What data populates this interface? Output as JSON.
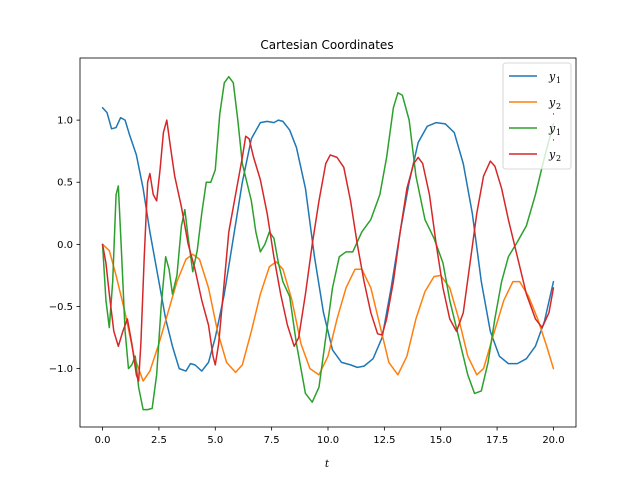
{
  "chart_data": {
    "type": "line",
    "title": "Cartesian Coordinates",
    "xlabel": "t",
    "ylabel": "",
    "xlim": [
      -1.0,
      21.0
    ],
    "ylim": [
      -1.47,
      1.5
    ],
    "xticks": [
      0.0,
      2.5,
      5.0,
      7.5,
      10.0,
      12.5,
      15.0,
      17.5,
      20.0
    ],
    "xtick_labels": [
      "0.0",
      "2.5",
      "5.0",
      "7.5",
      "10.0",
      "12.5",
      "15.0",
      "17.5",
      "20.0"
    ],
    "yticks": [
      1.0,
      0.5,
      0.0,
      -0.5,
      -1.0
    ],
    "ytick_labels": [
      "1.0",
      "0.5",
      "0.0",
      "−0.5",
      "−1.0"
    ],
    "grid": false,
    "legend_position": "top-right",
    "series": [
      {
        "name": "y1",
        "label_main": "y",
        "label_sub": "1",
        "label_dot": false,
        "color": "#1f77b4",
        "points": [
          [
            0.0,
            1.1
          ],
          [
            0.2,
            1.06
          ],
          [
            0.4,
            0.93
          ],
          [
            0.6,
            0.94
          ],
          [
            0.8,
            1.02
          ],
          [
            1.0,
            1.0
          ],
          [
            1.2,
            0.88
          ],
          [
            1.5,
            0.72
          ],
          [
            1.8,
            0.45
          ],
          [
            2.1,
            0.1
          ],
          [
            2.5,
            -0.3
          ],
          [
            2.8,
            -0.6
          ],
          [
            3.1,
            -0.82
          ],
          [
            3.4,
            -1.0
          ],
          [
            3.7,
            -1.02
          ],
          [
            3.9,
            -0.96
          ],
          [
            4.1,
            -0.97
          ],
          [
            4.4,
            -1.02
          ],
          [
            4.7,
            -0.95
          ],
          [
            5.0,
            -0.75
          ],
          [
            5.4,
            -0.4
          ],
          [
            5.8,
            0.05
          ],
          [
            6.2,
            0.5
          ],
          [
            6.6,
            0.85
          ],
          [
            7.0,
            0.98
          ],
          [
            7.3,
            0.99
          ],
          [
            7.6,
            0.98
          ],
          [
            7.8,
            1.0
          ],
          [
            8.0,
            0.99
          ],
          [
            8.3,
            0.92
          ],
          [
            8.6,
            0.78
          ],
          [
            9.0,
            0.45
          ],
          [
            9.4,
            -0.1
          ],
          [
            9.8,
            -0.55
          ],
          [
            10.2,
            -0.85
          ],
          [
            10.6,
            -0.95
          ],
          [
            11.0,
            -0.97
          ],
          [
            11.3,
            -0.99
          ],
          [
            11.6,
            -0.98
          ],
          [
            12.0,
            -0.92
          ],
          [
            12.4,
            -0.75
          ],
          [
            12.8,
            -0.35
          ],
          [
            13.2,
            0.1
          ],
          [
            13.6,
            0.5
          ],
          [
            14.0,
            0.82
          ],
          [
            14.4,
            0.95
          ],
          [
            14.8,
            0.98
          ],
          [
            15.2,
            0.97
          ],
          [
            15.6,
            0.9
          ],
          [
            16.0,
            0.65
          ],
          [
            16.4,
            0.25
          ],
          [
            16.8,
            -0.3
          ],
          [
            17.2,
            -0.7
          ],
          [
            17.6,
            -0.9
          ],
          [
            18.0,
            -0.96
          ],
          [
            18.4,
            -0.96
          ],
          [
            18.8,
            -0.92
          ],
          [
            19.2,
            -0.82
          ],
          [
            19.6,
            -0.62
          ],
          [
            20.0,
            -0.3
          ]
        ]
      },
      {
        "name": "y2",
        "label_main": "y",
        "label_sub": "2",
        "label_dot": false,
        "color": "#ff7f0e",
        "points": [
          [
            0.0,
            0.0
          ],
          [
            0.3,
            -0.05
          ],
          [
            0.6,
            -0.25
          ],
          [
            1.0,
            -0.55
          ],
          [
            1.4,
            -0.9
          ],
          [
            1.8,
            -1.1
          ],
          [
            2.1,
            -1.02
          ],
          [
            2.5,
            -0.8
          ],
          [
            2.9,
            -0.55
          ],
          [
            3.3,
            -0.3
          ],
          [
            3.7,
            -0.12
          ],
          [
            4.0,
            -0.08
          ],
          [
            4.3,
            -0.12
          ],
          [
            4.7,
            -0.35
          ],
          [
            5.1,
            -0.7
          ],
          [
            5.5,
            -0.95
          ],
          [
            5.9,
            -1.03
          ],
          [
            6.2,
            -0.97
          ],
          [
            6.6,
            -0.7
          ],
          [
            7.0,
            -0.4
          ],
          [
            7.4,
            -0.18
          ],
          [
            7.7,
            -0.14
          ],
          [
            8.0,
            -0.2
          ],
          [
            8.4,
            -0.45
          ],
          [
            8.8,
            -0.8
          ],
          [
            9.2,
            -1.0
          ],
          [
            9.6,
            -1.05
          ],
          [
            10.0,
            -0.9
          ],
          [
            10.4,
            -0.6
          ],
          [
            10.8,
            -0.35
          ],
          [
            11.2,
            -0.2
          ],
          [
            11.5,
            -0.2
          ],
          [
            11.9,
            -0.35
          ],
          [
            12.3,
            -0.65
          ],
          [
            12.7,
            -0.95
          ],
          [
            13.1,
            -1.05
          ],
          [
            13.5,
            -0.9
          ],
          [
            13.9,
            -0.6
          ],
          [
            14.3,
            -0.38
          ],
          [
            14.7,
            -0.26
          ],
          [
            15.0,
            -0.25
          ],
          [
            15.4,
            -0.35
          ],
          [
            15.8,
            -0.6
          ],
          [
            16.2,
            -0.9
          ],
          [
            16.6,
            -1.05
          ],
          [
            16.9,
            -1.0
          ],
          [
            17.3,
            -0.75
          ],
          [
            17.8,
            -0.45
          ],
          [
            18.2,
            -0.3
          ],
          [
            18.5,
            -0.3
          ],
          [
            18.9,
            -0.42
          ],
          [
            19.3,
            -0.6
          ],
          [
            19.7,
            -0.82
          ],
          [
            20.0,
            -1.0
          ]
        ]
      },
      {
        "name": "y1 dot",
        "label_main": "y",
        "label_sub": "1",
        "label_dot": true,
        "color": "#2ca02c",
        "points": [
          [
            0.0,
            0.0
          ],
          [
            0.15,
            -0.45
          ],
          [
            0.3,
            -0.67
          ],
          [
            0.45,
            -0.3
          ],
          [
            0.6,
            0.4
          ],
          [
            0.7,
            0.47
          ],
          [
            0.85,
            -0.1
          ],
          [
            1.0,
            -0.7
          ],
          [
            1.15,
            -1.0
          ],
          [
            1.3,
            -0.97
          ],
          [
            1.45,
            -0.9
          ],
          [
            1.6,
            -1.15
          ],
          [
            1.8,
            -1.33
          ],
          [
            2.0,
            -1.33
          ],
          [
            2.2,
            -1.32
          ],
          [
            2.4,
            -1.05
          ],
          [
            2.6,
            -0.5
          ],
          [
            2.8,
            -0.1
          ],
          [
            2.95,
            -0.2
          ],
          [
            3.1,
            -0.4
          ],
          [
            3.3,
            -0.25
          ],
          [
            3.5,
            0.15
          ],
          [
            3.65,
            0.28
          ],
          [
            3.8,
            0.05
          ],
          [
            4.0,
            -0.22
          ],
          [
            4.2,
            -0.05
          ],
          [
            4.4,
            0.25
          ],
          [
            4.6,
            0.5
          ],
          [
            4.8,
            0.5
          ],
          [
            5.0,
            0.6
          ],
          [
            5.2,
            1.05
          ],
          [
            5.4,
            1.3
          ],
          [
            5.6,
            1.35
          ],
          [
            5.8,
            1.3
          ],
          [
            6.0,
            1.0
          ],
          [
            6.2,
            0.65
          ],
          [
            6.4,
            0.5
          ],
          [
            6.6,
            0.35
          ],
          [
            6.8,
            0.1
          ],
          [
            7.0,
            -0.06
          ],
          [
            7.2,
            0.0
          ],
          [
            7.4,
            0.1
          ],
          [
            7.6,
            0.05
          ],
          [
            7.8,
            -0.15
          ],
          [
            8.0,
            -0.3
          ],
          [
            8.3,
            -0.42
          ],
          [
            8.6,
            -0.8
          ],
          [
            9.0,
            -1.2
          ],
          [
            9.3,
            -1.27
          ],
          [
            9.6,
            -1.15
          ],
          [
            9.9,
            -0.75
          ],
          [
            10.2,
            -0.35
          ],
          [
            10.5,
            -0.1
          ],
          [
            10.8,
            -0.06
          ],
          [
            11.1,
            -0.06
          ],
          [
            11.5,
            0.1
          ],
          [
            11.9,
            0.2
          ],
          [
            12.3,
            0.4
          ],
          [
            12.6,
            0.7
          ],
          [
            12.9,
            1.1
          ],
          [
            13.1,
            1.22
          ],
          [
            13.3,
            1.2
          ],
          [
            13.6,
            1.0
          ],
          [
            13.9,
            0.55
          ],
          [
            14.3,
            0.2
          ],
          [
            14.7,
            0.05
          ],
          [
            15.1,
            -0.15
          ],
          [
            15.4,
            -0.45
          ],
          [
            15.8,
            -0.75
          ],
          [
            16.2,
            -1.05
          ],
          [
            16.5,
            -1.2
          ],
          [
            16.8,
            -1.18
          ],
          [
            17.1,
            -0.95
          ],
          [
            17.4,
            -0.6
          ],
          [
            17.7,
            -0.3
          ],
          [
            18.0,
            -0.1
          ],
          [
            18.4,
            0.02
          ],
          [
            18.8,
            0.15
          ],
          [
            19.2,
            0.4
          ],
          [
            19.6,
            0.7
          ],
          [
            20.0,
            0.97
          ]
        ]
      },
      {
        "name": "y2 dot",
        "label_main": "y",
        "label_sub": "2",
        "label_dot": true,
        "color": "#d62728",
        "points": [
          [
            0.0,
            0.0
          ],
          [
            0.15,
            -0.15
          ],
          [
            0.3,
            -0.4
          ],
          [
            0.5,
            -0.7
          ],
          [
            0.7,
            -0.82
          ],
          [
            0.9,
            -0.7
          ],
          [
            1.1,
            -0.6
          ],
          [
            1.3,
            -0.8
          ],
          [
            1.5,
            -1.05
          ],
          [
            1.6,
            -1.1
          ],
          [
            1.7,
            -0.8
          ],
          [
            1.85,
            -0.1
          ],
          [
            2.0,
            0.5
          ],
          [
            2.1,
            0.57
          ],
          [
            2.25,
            0.4
          ],
          [
            2.4,
            0.35
          ],
          [
            2.55,
            0.6
          ],
          [
            2.7,
            0.9
          ],
          [
            2.85,
            1.0
          ],
          [
            3.0,
            0.8
          ],
          [
            3.2,
            0.55
          ],
          [
            3.5,
            0.3
          ],
          [
            3.8,
            0.0
          ],
          [
            4.1,
            -0.2
          ],
          [
            4.4,
            -0.45
          ],
          [
            4.7,
            -0.65
          ],
          [
            4.9,
            -0.9
          ],
          [
            5.0,
            -0.97
          ],
          [
            5.15,
            -0.8
          ],
          [
            5.35,
            -0.4
          ],
          [
            5.6,
            0.1
          ],
          [
            5.9,
            0.4
          ],
          [
            6.2,
            0.7
          ],
          [
            6.35,
            0.87
          ],
          [
            6.5,
            0.85
          ],
          [
            6.7,
            0.7
          ],
          [
            7.0,
            0.52
          ],
          [
            7.3,
            0.25
          ],
          [
            7.6,
            -0.1
          ],
          [
            7.9,
            -0.4
          ],
          [
            8.2,
            -0.65
          ],
          [
            8.5,
            -0.82
          ],
          [
            8.7,
            -0.75
          ],
          [
            9.0,
            -0.4
          ],
          [
            9.3,
            0.0
          ],
          [
            9.6,
            0.35
          ],
          [
            9.9,
            0.65
          ],
          [
            10.1,
            0.72
          ],
          [
            10.4,
            0.7
          ],
          [
            10.7,
            0.62
          ],
          [
            11.0,
            0.35
          ],
          [
            11.3,
            0.0
          ],
          [
            11.6,
            -0.3
          ],
          [
            11.9,
            -0.55
          ],
          [
            12.2,
            -0.72
          ],
          [
            12.4,
            -0.73
          ],
          [
            12.6,
            -0.6
          ],
          [
            12.9,
            -0.3
          ],
          [
            13.2,
            0.1
          ],
          [
            13.5,
            0.45
          ],
          [
            13.8,
            0.65
          ],
          [
            14.0,
            0.7
          ],
          [
            14.2,
            0.65
          ],
          [
            14.5,
            0.4
          ],
          [
            14.8,
            0.0
          ],
          [
            15.1,
            -0.35
          ],
          [
            15.4,
            -0.6
          ],
          [
            15.7,
            -0.7
          ],
          [
            16.0,
            -0.55
          ],
          [
            16.3,
            -0.15
          ],
          [
            16.6,
            0.25
          ],
          [
            16.9,
            0.55
          ],
          [
            17.2,
            0.67
          ],
          [
            17.4,
            0.63
          ],
          [
            17.7,
            0.45
          ],
          [
            18.0,
            0.2
          ],
          [
            18.4,
            -0.1
          ],
          [
            18.8,
            -0.4
          ],
          [
            19.2,
            -0.6
          ],
          [
            19.5,
            -0.67
          ],
          [
            19.8,
            -0.55
          ],
          [
            20.0,
            -0.35
          ]
        ]
      }
    ]
  }
}
